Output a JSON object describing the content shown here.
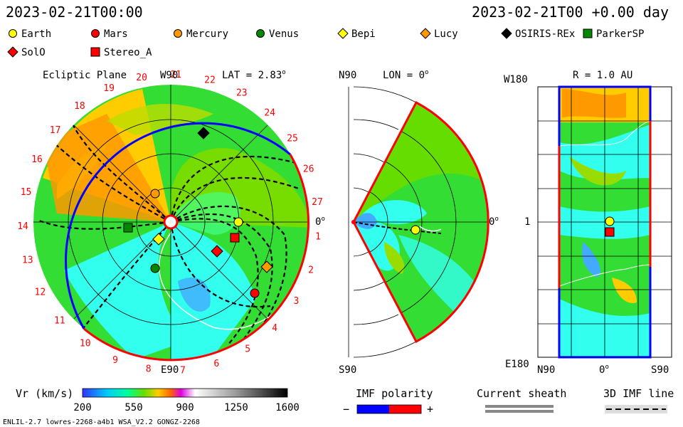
{
  "header": {
    "datetime_left": "2023-02-21T00:00",
    "datetime_right": "2023-02-21T00 +0.00 day"
  },
  "legend": {
    "items": [
      {
        "label": "Earth",
        "shape": "circle",
        "color": "#ffff00"
      },
      {
        "label": "Mars",
        "shape": "circle",
        "color": "#ff0000"
      },
      {
        "label": "Mercury",
        "shape": "circle",
        "color": "#ff9900"
      },
      {
        "label": "Venus",
        "shape": "circle",
        "color": "#008800"
      },
      {
        "label": "Bepi",
        "shape": "diamond",
        "color": "#ffff00"
      },
      {
        "label": "Lucy",
        "shape": "diamond",
        "color": "#ff9900"
      },
      {
        "label": "OSIRIS-REx",
        "shape": "diamond",
        "color": "#000000"
      },
      {
        "label": "ParkerSP",
        "shape": "square",
        "color": "#008800"
      },
      {
        "label": "SolO",
        "shape": "diamond",
        "color": "#ff0000"
      },
      {
        "label": "Stereo_A",
        "shape": "square",
        "color": "#ff0000"
      }
    ]
  },
  "panels": {
    "ecliptic": {
      "title": "Ecliptic Plane",
      "lat_label": "LAT = 2.83",
      "lat_sup": "o",
      "top_label": "W90",
      "bottom_label": "E90",
      "right_label": "0",
      "right_sup": "o"
    },
    "meridional": {
      "top_left": "N90",
      "lon_label": "LON = 0",
      "lon_sup": "o",
      "right_label": "0",
      "right_sup": "o",
      "bottom_left": "S90"
    },
    "radial": {
      "title": "R = 1.0 AU",
      "top_left": "W180",
      "mid_left": "1",
      "bottom_left": "E180",
      "x_labels": [
        "N90",
        "0",
        "S90"
      ],
      "x_sup": "o"
    }
  },
  "colorbar": {
    "title": "Vr (km/s)",
    "ticks": [
      "200",
      "550",
      "900",
      "1250",
      "1600"
    ]
  },
  "imf_polarity": {
    "title": "IMF polarity",
    "minus": "−",
    "plus": "+"
  },
  "current_sheath": {
    "title": "Current sheath"
  },
  "imf_line": {
    "title": "3D IMF line"
  },
  "footer": {
    "left": "ENLIL-2.7 lowres-2268-a4b1 WSA_V2.2 GONGZ-2268"
  },
  "chart_data": {
    "type": "heatmap",
    "title": "Ecliptic Plane",
    "colorbar_variable": "Vr (km/s)",
    "colorbar_range": [
      200,
      1600
    ],
    "date": "2023-02-21T00:00",
    "offset_days": 0.0,
    "carrington_ticks": [
      "19",
      "20",
      "21",
      "22",
      "23",
      "24",
      "25",
      "26",
      "27",
      "1",
      "2",
      "3",
      "4",
      "5",
      "6",
      "7",
      "8",
      "9",
      "10",
      "11",
      "12",
      "13",
      "14",
      "15",
      "16",
      "17",
      "18"
    ],
    "latitude_deg": 2.83,
    "longitude_deg": 0,
    "radius_au": 1.0
  }
}
